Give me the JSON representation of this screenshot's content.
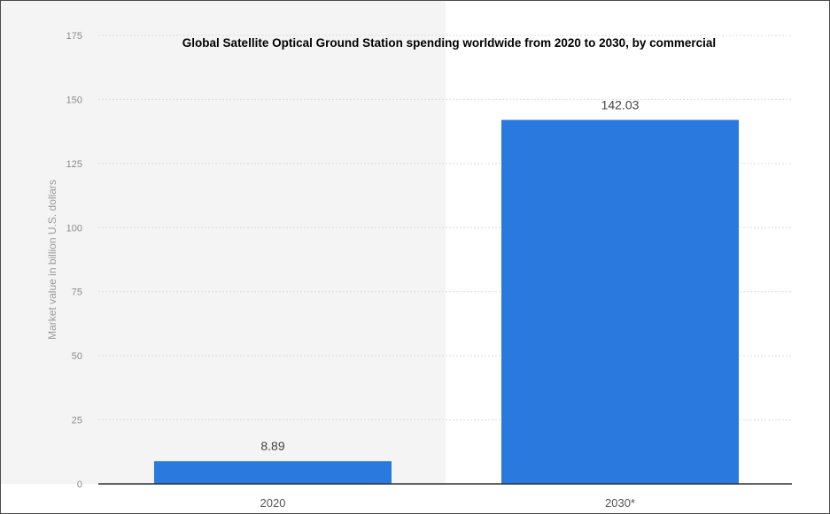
{
  "chart_data": {
    "type": "bar",
    "title": "Global Satellite Optical Ground Station spending worldwide from 2020 to 2030, by commercial",
    "xlabel": "",
    "ylabel": "Market value in billion U.S. dollars",
    "categories": [
      "2020",
      "2030*"
    ],
    "values": [
      8.89,
      142.03
    ],
    "data_labels": [
      "8.89",
      "142.03"
    ],
    "ylim": [
      0,
      175
    ],
    "yticks": [
      0,
      25,
      50,
      75,
      100,
      125,
      150,
      175
    ],
    "grid": true,
    "legend": "none",
    "colors": {
      "bar": "#2979de",
      "plot_bg_shaded": "#f4f4f4",
      "grid": "#dcdcdc",
      "axis": "#333333"
    }
  }
}
